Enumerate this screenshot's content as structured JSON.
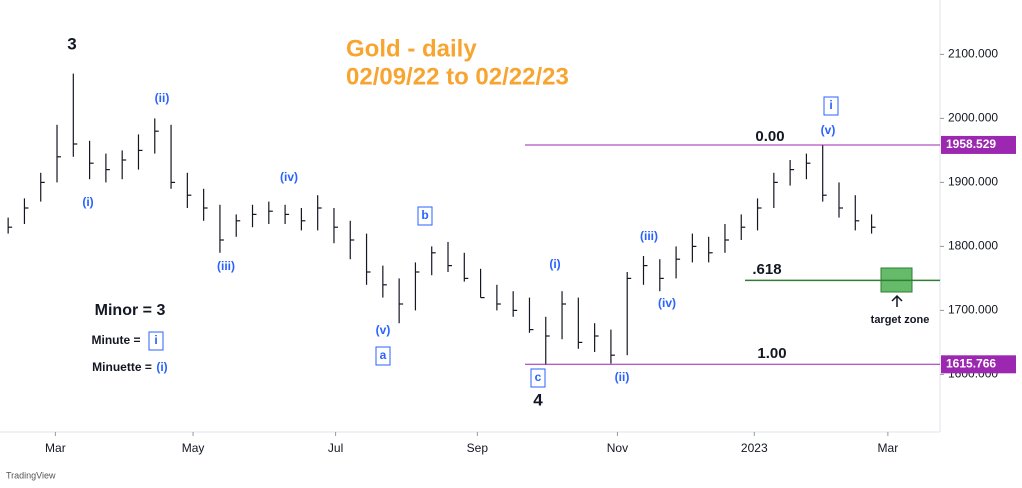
{
  "chart_data": {
    "type": "ohlc",
    "title": "Gold - daily",
    "subtitle": "02/09/22 to 02/22/23",
    "high": [
      1845,
      1875,
      1915,
      1990,
      2070,
      1965,
      1945,
      1950,
      1975,
      2000,
      1990,
      1915,
      1890,
      1865,
      1850,
      1865,
      1870,
      1865,
      1860,
      1880,
      1860,
      1840,
      1820,
      1770,
      1750,
      1775,
      1800,
      1807,
      1790,
      1765,
      1740,
      1730,
      1720,
      1690,
      1730,
      1720,
      1680,
      1670,
      1760,
      1785,
      1780,
      1800,
      1820,
      1815,
      1835,
      1850,
      1875,
      1915,
      1935,
      1945,
      1958,
      1900,
      1880,
      1850
    ],
    "low": [
      1820,
      1835,
      1870,
      1900,
      1940,
      1905,
      1900,
      1905,
      1920,
      1945,
      1890,
      1860,
      1840,
      1790,
      1815,
      1830,
      1835,
      1835,
      1825,
      1825,
      1805,
      1780,
      1740,
      1720,
      1680,
      1700,
      1755,
      1760,
      1745,
      1720,
      1700,
      1690,
      1665,
      1615,
      1655,
      1640,
      1635,
      1617,
      1630,
      1740,
      1730,
      1750,
      1775,
      1775,
      1790,
      1810,
      1825,
      1860,
      1895,
      1905,
      1870,
      1845,
      1825,
      1820
    ],
    "close": [
      1830,
      1860,
      1900,
      1940,
      1960,
      1930,
      1920,
      1935,
      1950,
      1980,
      1900,
      1880,
      1860,
      1810,
      1840,
      1850,
      1855,
      1850,
      1840,
      1860,
      1830,
      1810,
      1760,
      1740,
      1710,
      1760,
      1790,
      1770,
      1750,
      1720,
      1710,
      1700,
      1670,
      1660,
      1710,
      1650,
      1660,
      1630,
      1750,
      1770,
      1750,
      1780,
      1800,
      1790,
      1810,
      1830,
      1860,
      1900,
      1920,
      1930,
      1880,
      1860,
      1840,
      1830
    ],
    "color": "#131722",
    "xlim": [
      -0.5,
      57.2
    ],
    "xticks": [
      {
        "value": 2.9,
        "label": "Mar"
      },
      {
        "value": 11.35,
        "label": "May"
      },
      {
        "value": 20.1,
        "label": "Jul"
      },
      {
        "value": 28.8,
        "label": "Sep"
      },
      {
        "value": 37.4,
        "label": "Nov"
      },
      {
        "value": 45.8,
        "label": "2023"
      },
      {
        "value": 54.0,
        "label": "Mar"
      }
    ],
    "ylim": [
      1510,
      2185
    ],
    "yticks": [
      {
        "value": 1600,
        "label": "1600.000"
      },
      {
        "value": 1700,
        "label": "1700.000"
      },
      {
        "value": 1800,
        "label": "1800.000"
      },
      {
        "value": 1900,
        "label": "1900.000"
      },
      {
        "value": 2000,
        "label": "2000.000"
      },
      {
        "value": 2100,
        "label": "2100.000"
      }
    ],
    "levels": [
      1958.529,
      1615.766
    ],
    "level_color": "#9c27b0",
    "fib_line": 1747,
    "fib_color": "#2e7d32",
    "annotations": [
      "3",
      "(i)",
      "(ii)",
      "(iii)",
      "(iv)",
      "(v)",
      "a",
      "b",
      "(i)",
      "c",
      "4",
      "(ii)",
      "(iii)",
      "(iv)",
      "i",
      "(v)",
      "0.00",
      ".618",
      "1.00",
      "Minor = 3",
      "Minute =",
      "i",
      "Minuette =",
      "(i)",
      "target zone"
    ],
    "source": "TradingView"
  }
}
